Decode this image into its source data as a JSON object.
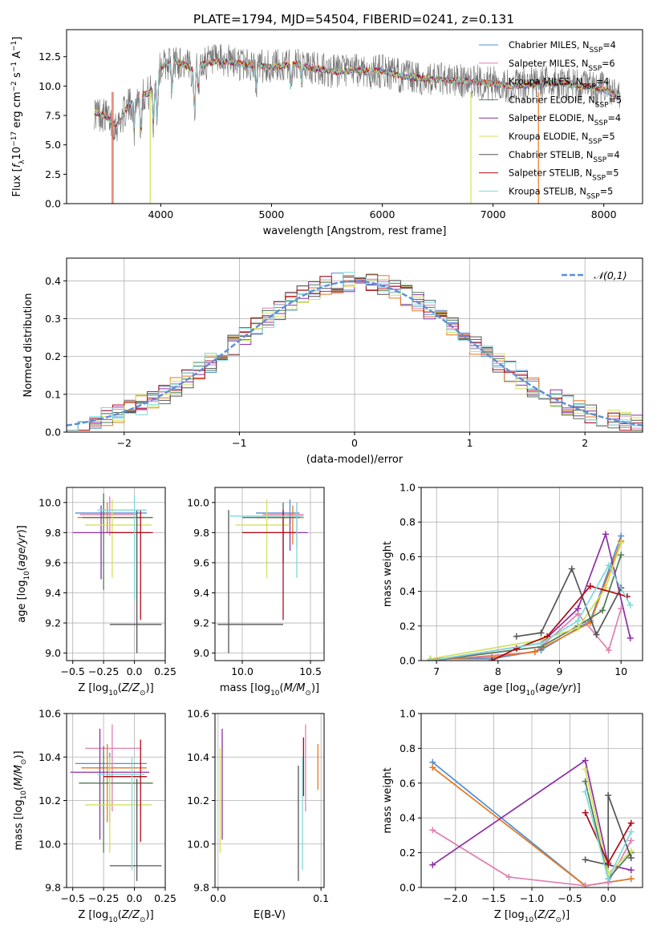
{
  "title": "PLATE=1794, MJD=54504, FIBERID=0241, z=0.131",
  "colors": {
    "chabrier_miles": "#4f8fd6",
    "salpeter_miles": "#e07fb2",
    "kroupa_miles": "#e8771f",
    "chabrier_elodie": "#4f7a52",
    "salpeter_elodie": "#8e2fa6",
    "kroupa_elodie": "#d3e05a",
    "chabrier_stelib": "#555555",
    "salpeter_stelib": "#b00a16",
    "kroupa_stelib": "#7fd9da",
    "normal_curve": "#5b8fd6",
    "grid": "#b0b0b0"
  },
  "chart_data": [
    {
      "id": "spectrum",
      "type": "line",
      "xlabel": "wavelength [Angstrom, rest frame]",
      "ylabel": "Flux [f_λ 10^-17 erg cm^-2 s^-1 A^-1]",
      "xlim": [
        3150,
        8350
      ],
      "ylim": [
        0,
        14.8
      ],
      "xticks": [
        4000,
        5000,
        6000,
        7000,
        8000
      ],
      "yticks": [
        0.0,
        2.5,
        5.0,
        7.5,
        10.0,
        12.5
      ],
      "legend_loc": "right",
      "legend": [
        {
          "key": "chabrier_miles",
          "prefix": "Chabrier MILES, N",
          "value": "=4"
        },
        {
          "key": "salpeter_miles",
          "prefix": "Salpeter MILES, N",
          "value": "=6"
        },
        {
          "key": "kroupa_miles",
          "prefix": "Kroupa MILES, N",
          "value": "=4"
        },
        {
          "key": "chabrier_elodie",
          "prefix": "Chabrier ELODIE, N",
          "value": "=5"
        },
        {
          "key": "salpeter_elodie",
          "prefix": "Salpeter ELODIE, N",
          "value": "=4"
        },
        {
          "key": "kroupa_elodie",
          "prefix": "Kroupa ELODIE, N",
          "value": "=5"
        },
        {
          "key": "chabrier_stelib",
          "prefix": "Chabrier STELIB, N",
          "value": "=4"
        },
        {
          "key": "salpeter_stelib",
          "prefix": "Salpeter STELIB, N",
          "value": "=5"
        },
        {
          "key": "kroupa_stelib",
          "prefix": "Kroupa STELIB, N",
          "value": "=5"
        }
      ],
      "legend_subscript": "SSP",
      "continuum": [
        [
          3400,
          7.8
        ],
        [
          3500,
          7.5
        ],
        [
          3600,
          6.6
        ],
        [
          3700,
          8.2
        ],
        [
          3800,
          9.2
        ],
        [
          3900,
          9.4
        ],
        [
          3950,
          10.5
        ],
        [
          4000,
          11.6
        ],
        [
          4100,
          12.2
        ],
        [
          4200,
          11.9
        ],
        [
          4300,
          11.3
        ],
        [
          4400,
          12.0
        ],
        [
          4600,
          12.1
        ],
        [
          4800,
          11.8
        ],
        [
          5000,
          11.6
        ],
        [
          5200,
          11.9
        ],
        [
          5400,
          11.5
        ],
        [
          5600,
          11.2
        ],
        [
          5800,
          11.4
        ],
        [
          6000,
          11.3
        ],
        [
          6200,
          10.8
        ],
        [
          6400,
          10.6
        ],
        [
          6600,
          10.5
        ],
        [
          6800,
          10.4
        ],
        [
          7000,
          10.2
        ],
        [
          7200,
          10.0
        ],
        [
          7400,
          10.2
        ],
        [
          7600,
          10.3
        ],
        [
          7800,
          10.0
        ],
        [
          8000,
          9.7
        ],
        [
          8150,
          9.0
        ]
      ],
      "absorption": [
        [
          3934,
          6.5
        ],
        [
          3968,
          7.0
        ],
        [
          4102,
          9.5
        ],
        [
          4305,
          7.8
        ],
        [
          4340,
          9.7
        ],
        [
          4861,
          9.8
        ],
        [
          5175,
          9.9
        ],
        [
          5270,
          10.3
        ],
        [
          5892,
          10.2
        ],
        [
          6563,
          10.4
        ],
        [
          3820,
          5.9
        ],
        [
          3760,
          6.3
        ]
      ],
      "drop_lines": [
        {
          "x": 3560,
          "key": "salpeter_miles"
        },
        {
          "x": 3570,
          "key": "kroupa_miles"
        },
        {
          "x": 3905,
          "key": "kroupa_elodie"
        },
        {
          "x": 6800,
          "key": "kroupa_elodie"
        },
        {
          "x": 7410,
          "key": "kroupa_miles"
        }
      ]
    },
    {
      "id": "residuals",
      "type": "histogram",
      "xlabel": "(data-model)/error",
      "ylabel": "Normed distribution",
      "xlim": [
        -2.5,
        2.5
      ],
      "ylim": [
        0,
        0.46
      ],
      "xticks": [
        -2,
        -1,
        0,
        1,
        2
      ],
      "yticks": [
        0.0,
        0.1,
        0.2,
        0.3,
        0.4
      ],
      "bin_width": 0.1,
      "legend": "𝒩(0,1)",
      "curve": "normal_pdf_mu0_sigma1"
    },
    {
      "id": "age_vs_metallicity",
      "type": "errorbar",
      "xlabel": "Z [log10(Z/Z⊙)]",
      "ylabel": "age [log10(age/yr)]",
      "xlim": [
        -0.55,
        0.25
      ],
      "ylim": [
        8.95,
        10.1
      ],
      "xticks": [
        -0.5,
        -0.25,
        0.0,
        0.25
      ],
      "yticks": [
        9.0,
        9.2,
        9.4,
        9.6,
        9.8,
        10.0
      ],
      "points": [
        {
          "key": "chabrier_miles",
          "x": -0.25,
          "xlo": -0.48,
          "xhi": 0.1,
          "y": 9.93,
          "ylo": 9.85,
          "yhi": 10.02
        },
        {
          "key": "salpeter_miles",
          "x": -0.2,
          "xlo": -0.44,
          "xhi": 0.02,
          "y": 9.92,
          "ylo": 9.78,
          "yhi": 10.04
        },
        {
          "key": "kroupa_miles",
          "x": -0.22,
          "xlo": -0.46,
          "xhi": 0.08,
          "y": 9.9,
          "ylo": 9.8,
          "yhi": 10.0
        },
        {
          "key": "chabrier_elodie",
          "x": -0.25,
          "xlo": -0.42,
          "xhi": 0.15,
          "y": 9.9,
          "ylo": 9.42,
          "yhi": 10.06
        },
        {
          "key": "salpeter_elodie",
          "x": -0.27,
          "xlo": -0.5,
          "xhi": 0.12,
          "y": 9.8,
          "ylo": 9.49,
          "yhi": 9.98
        },
        {
          "key": "kroupa_elodie",
          "x": -0.18,
          "xlo": -0.4,
          "xhi": 0.14,
          "y": 9.85,
          "ylo": 9.5,
          "yhi": 10.02
        },
        {
          "key": "chabrier_stelib",
          "x": 0.02,
          "xlo": -0.2,
          "xhi": 0.22,
          "y": 9.19,
          "ylo": 9.0,
          "yhi": 9.95
        },
        {
          "key": "salpeter_stelib",
          "x": 0.05,
          "xlo": -0.2,
          "xhi": 0.15,
          "y": 9.8,
          "ylo": 9.22,
          "yhi": 9.95
        },
        {
          "key": "kroupa_stelib",
          "x": 0.0,
          "xlo": -0.3,
          "xhi": 0.1,
          "y": 9.95,
          "ylo": 9.35,
          "yhi": 10.05
        }
      ]
    },
    {
      "id": "age_vs_mass",
      "type": "errorbar",
      "xlabel": "mass [log10(M/M⊙)]",
      "ylabel": "",
      "xlim": [
        9.8,
        10.6
      ],
      "ylim": [
        8.95,
        10.1
      ],
      "xticks": [
        10.0,
        10.5
      ],
      "yticks": [
        9.0,
        9.2,
        9.4,
        9.6,
        9.8,
        10.0
      ],
      "points": [
        {
          "key": "chabrier_miles",
          "x": 10.35,
          "xlo": 10.1,
          "xhi": 10.42,
          "y": 9.93,
          "ylo": 9.85,
          "yhi": 10.02
        },
        {
          "key": "salpeter_miles",
          "x": 10.4,
          "xlo": 10.15,
          "xhi": 10.45,
          "y": 9.92,
          "ylo": 9.7,
          "yhi": 10.0
        },
        {
          "key": "kroupa_miles",
          "x": 10.37,
          "xlo": 10.1,
          "xhi": 10.45,
          "y": 9.9,
          "ylo": 9.72,
          "yhi": 9.98
        },
        {
          "key": "chabrier_elodie",
          "x": 10.3,
          "xlo": 10.0,
          "xhi": 10.42,
          "y": 9.9,
          "ylo": 9.6,
          "yhi": 10.0
        },
        {
          "key": "salpeter_elodie",
          "x": 10.35,
          "xlo": 10.0,
          "xhi": 10.48,
          "y": 9.8,
          "ylo": 9.68,
          "yhi": 9.92
        },
        {
          "key": "kroupa_elodie",
          "x": 10.18,
          "xlo": 9.95,
          "xhi": 10.35,
          "y": 9.85,
          "ylo": 9.5,
          "yhi": 10.02
        },
        {
          "key": "chabrier_stelib",
          "x": 9.9,
          "xlo": 9.82,
          "xhi": 10.3,
          "y": 9.19,
          "ylo": 9.0,
          "yhi": 9.95
        },
        {
          "key": "salpeter_stelib",
          "x": 10.3,
          "xlo": 10.0,
          "xhi": 10.4,
          "y": 9.8,
          "ylo": 9.22,
          "yhi": 9.95
        },
        {
          "key": "kroupa_stelib",
          "x": 10.4,
          "xlo": 9.9,
          "xhi": 10.45,
          "y": 9.91,
          "ylo": 9.5,
          "yhi": 10.0
        }
      ]
    },
    {
      "id": "weight_vs_age",
      "type": "line",
      "xlabel": "age [log10(age/yr)]",
      "ylabel": "mass weight",
      "xlim": [
        6.75,
        10.35
      ],
      "ylim": [
        0,
        1
      ],
      "xticks": [
        7,
        8,
        9,
        10
      ],
      "yticks": [
        0.0,
        0.2,
        0.4,
        0.6,
        0.8,
        1.0
      ],
      "series": [
        {
          "key": "chabrier_miles",
          "x": [
            6.9,
            7.9,
            8.7,
            9.5,
            10.0
          ],
          "y": [
            0.01,
            0.01,
            0.06,
            0.23,
            0.72
          ]
        },
        {
          "key": "salpeter_miles",
          "x": [
            6.9,
            8.6,
            9.3,
            9.8,
            10.0
          ],
          "y": [
            0.0,
            0.05,
            0.27,
            0.06,
            0.3
          ]
        },
        {
          "key": "kroupa_miles",
          "x": [
            6.9,
            7.9,
            8.6,
            9.5,
            10.0
          ],
          "y": [
            0.01,
            0.02,
            0.05,
            0.22,
            0.69
          ]
        },
        {
          "key": "chabrier_elodie",
          "x": [
            6.9,
            8.7,
            9.3,
            9.7,
            10.0
          ],
          "y": [
            0.0,
            0.08,
            0.2,
            0.29,
            0.61
          ]
        },
        {
          "key": "salpeter_elodie",
          "x": [
            6.9,
            8.7,
            9.3,
            9.75,
            10.15
          ],
          "y": [
            0.0,
            0.1,
            0.3,
            0.73,
            0.13
          ]
        },
        {
          "key": "kroupa_elodie",
          "x": [
            6.9,
            8.7,
            9.3,
            9.75,
            10.0
          ],
          "y": [
            0.01,
            0.12,
            0.19,
            0.42,
            0.68
          ]
        },
        {
          "key": "chabrier_stelib",
          "x": [
            8.3,
            8.7,
            9.2,
            9.6,
            10.0
          ],
          "y": [
            0.14,
            0.16,
            0.53,
            0.15,
            0.42
          ]
        },
        {
          "key": "salpeter_stelib",
          "x": [
            7.9,
            8.3,
            8.8,
            9.5,
            10.1
          ],
          "y": [
            0.0,
            0.07,
            0.14,
            0.43,
            0.37
          ]
        },
        {
          "key": "kroupa_stelib",
          "x": [
            6.9,
            8.7,
            9.3,
            9.8,
            10.15
          ],
          "y": [
            0.0,
            0.1,
            0.23,
            0.55,
            0.32
          ]
        }
      ]
    },
    {
      "id": "mass_vs_metallicity",
      "type": "errorbar",
      "xlabel": "Z [log10(Z/Z⊙)]",
      "ylabel": "mass [log10(M/M⊙)]",
      "xlim": [
        -0.55,
        0.25
      ],
      "ylim": [
        9.8,
        10.6
      ],
      "xticks": [
        -0.5,
        -0.25,
        0.0,
        0.25
      ],
      "yticks": [
        9.8,
        10.0,
        10.2,
        10.4,
        10.6
      ],
      "points": [
        {
          "key": "chabrier_miles",
          "x": -0.2,
          "xlo": -0.48,
          "xhi": 0.1,
          "y": 10.37,
          "ylo": 10.1,
          "yhi": 10.42
        },
        {
          "key": "salpeter_miles",
          "x": -0.18,
          "xlo": -0.4,
          "xhi": 0.05,
          "y": 10.44,
          "ylo": 10.15,
          "yhi": 10.55
        },
        {
          "key": "kroupa_miles",
          "x": -0.22,
          "xlo": -0.43,
          "xhi": 0.1,
          "y": 10.35,
          "ylo": 10.1,
          "yhi": 10.46
        },
        {
          "key": "chabrier_elodie",
          "x": -0.25,
          "xlo": -0.45,
          "xhi": 0.15,
          "y": 10.28,
          "ylo": 9.96,
          "yhi": 10.45
        },
        {
          "key": "salpeter_elodie",
          "x": -0.28,
          "xlo": -0.52,
          "xhi": 0.12,
          "y": 10.33,
          "ylo": 10.02,
          "yhi": 10.53
        },
        {
          "key": "kroupa_elodie",
          "x": -0.2,
          "xlo": -0.4,
          "xhi": 0.14,
          "y": 10.18,
          "ylo": 9.96,
          "yhi": 10.4
        },
        {
          "key": "chabrier_stelib",
          "x": 0.02,
          "xlo": -0.2,
          "xhi": 0.22,
          "y": 9.9,
          "ylo": 9.83,
          "yhi": 10.3
        },
        {
          "key": "salpeter_stelib",
          "x": 0.05,
          "xlo": -0.25,
          "xhi": 0.1,
          "y": 10.31,
          "ylo": 10.01,
          "yhi": 10.48
        },
        {
          "key": "kroupa_stelib",
          "x": -0.02,
          "xlo": -0.3,
          "xhi": 0.08,
          "y": 10.32,
          "ylo": 9.88,
          "yhi": 10.4
        }
      ]
    },
    {
      "id": "mass_vs_ebv",
      "type": "errorbar",
      "xlabel": "E(B-V)",
      "ylabel": "",
      "xlim": [
        -0.003,
        0.103
      ],
      "ylim": [
        9.8,
        10.6
      ],
      "xticks": [
        0.0,
        0.1
      ],
      "yticks": [
        9.8,
        10.0,
        10.2,
        10.4,
        10.6
      ],
      "points": [
        {
          "key": "salpeter_elodie",
          "x": 0.004,
          "ylo": 10.02,
          "yhi": 10.53
        },
        {
          "key": "kroupa_elodie",
          "x": 0.002,
          "ylo": 9.96,
          "yhi": 10.44
        },
        {
          "key": "chabrier_stelib",
          "x": 0.078,
          "ylo": 9.83,
          "yhi": 10.36
        },
        {
          "key": "salpeter_stelib",
          "x": 0.083,
          "ylo": 10.22,
          "yhi": 10.49
        },
        {
          "key": "salpeter_miles",
          "x": 0.085,
          "ylo": 10.15,
          "yhi": 10.55
        },
        {
          "key": "kroupa_stelib",
          "x": 0.082,
          "ylo": 9.88,
          "yhi": 10.4
        },
        {
          "key": "kroupa_miles",
          "x": 0.097,
          "ylo": 10.25,
          "yhi": 10.46
        }
      ]
    },
    {
      "id": "weight_vs_metallicity",
      "type": "line",
      "xlabel": "Z [log10(Z/Z⊙)]",
      "ylabel": "mass weight",
      "xlim": [
        -2.45,
        0.45
      ],
      "ylim": [
        0,
        1
      ],
      "xticks": [
        -2.0,
        -1.5,
        -1.0,
        -0.5,
        0.0
      ],
      "yticks": [
        0.0,
        0.2,
        0.4,
        0.6,
        0.8,
        1.0
      ],
      "series": [
        {
          "key": "chabrier_miles",
          "x": [
            -2.3,
            -0.3,
            0.0,
            0.3
          ],
          "y": [
            0.72,
            0.01,
            0.03,
            0.05
          ]
        },
        {
          "key": "kroupa_miles",
          "x": [
            -2.3,
            -0.3,
            0.0,
            0.3
          ],
          "y": [
            0.69,
            0.01,
            0.03,
            0.05
          ]
        },
        {
          "key": "salpeter_miles",
          "x": [
            -2.3,
            -1.3,
            -0.3,
            0.0,
            0.3
          ],
          "y": [
            0.33,
            0.06,
            0.01,
            0.03,
            0.27
          ]
        },
        {
          "key": "salpeter_elodie",
          "x": [
            -2.3,
            -0.3,
            0.0,
            0.3
          ],
          "y": [
            0.13,
            0.73,
            0.13,
            0.1
          ]
        },
        {
          "key": "chabrier_elodie",
          "x": [
            -0.3,
            0.0,
            0.3
          ],
          "y": [
            0.61,
            0.05,
            0.2
          ]
        },
        {
          "key": "kroupa_elodie",
          "x": [
            -0.3,
            0.0,
            0.3
          ],
          "y": [
            0.68,
            0.08,
            0.21
          ]
        },
        {
          "key": "chabrier_stelib",
          "x": [
            -0.3,
            0.0,
            0.0,
            0.3
          ],
          "y": [
            0.16,
            0.13,
            0.53,
            0.17
          ]
        },
        {
          "key": "salpeter_stelib",
          "x": [
            -0.3,
            0.0,
            0.3
          ],
          "y": [
            0.43,
            0.14,
            0.37
          ]
        },
        {
          "key": "kroupa_stelib",
          "x": [
            -0.3,
            0.0,
            0.3
          ],
          "y": [
            0.55,
            0.05,
            0.32
          ]
        }
      ]
    }
  ]
}
